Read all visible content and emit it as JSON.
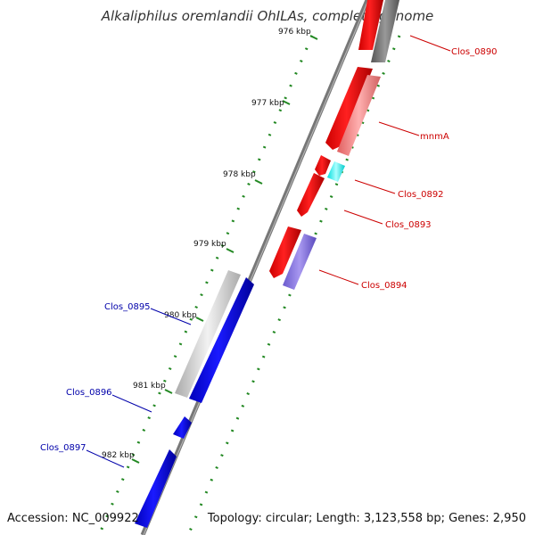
{
  "title": "Alkaliphilus oremlandii OhILAs, complete genome",
  "accession": "Accession: NC_009922",
  "summary": "Topology: circular; Length: 3,123,558 bp; Genes: 2,950",
  "ruler": {
    "ticks": [
      {
        "label": "976 kbp"
      },
      {
        "label": "977 kbp"
      },
      {
        "label": "978 kbp"
      },
      {
        "label": "979 kbp"
      },
      {
        "label": "980 kbp"
      },
      {
        "label": "981 kbp"
      },
      {
        "label": "982 kbp"
      }
    ]
  },
  "genes": [
    {
      "label": "Clos_0890",
      "strand": "reverse",
      "color": "#cc0000"
    },
    {
      "label": "mnmA",
      "strand": "reverse",
      "color": "#cc0000"
    },
    {
      "label": "Clos_0892",
      "strand": "reverse",
      "color": "#cc0000"
    },
    {
      "label": "Clos_0893",
      "strand": "reverse",
      "color": "#cc0000"
    },
    {
      "label": "Clos_0894",
      "strand": "reverse",
      "color": "#cc0000"
    },
    {
      "label": "Clos_0895",
      "strand": "forward",
      "color": "#0000aa"
    },
    {
      "label": "Clos_0896",
      "strand": "forward",
      "color": "#0000aa"
    },
    {
      "label": "Clos_0897",
      "strand": "forward",
      "color": "#0000aa"
    }
  ],
  "colors": {
    "cds_reverse": "#ee0000",
    "cds_forward": "#0000dd",
    "cog_gray": "#777777",
    "cog_pink": "#f08080",
    "cog_cyan": "#00ffff",
    "cog_purple": "#7b68d9",
    "cog_lightgray": "#cccccc",
    "ruler_green": "#228822",
    "backbone": "#777777"
  }
}
